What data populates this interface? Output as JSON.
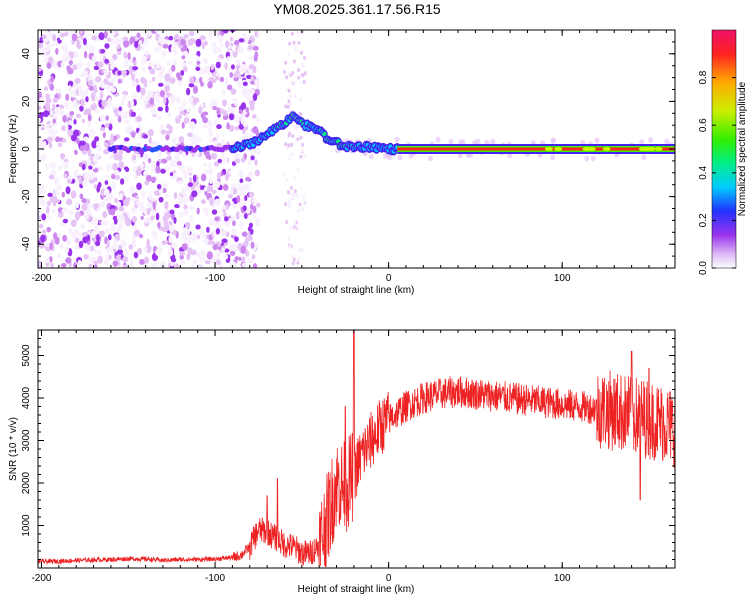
{
  "title": "YM08.2025.361.17.56.R15",
  "colors": {
    "trace": "#ee2222",
    "colormap": [
      "#f8f0fc",
      "#e6c4f6",
      "#cc88ee",
      "#9933ee",
      "#4422ee",
      "#2255ff",
      "#00ccff",
      "#00ee88",
      "#44ee00",
      "#ccee00",
      "#ffaa00",
      "#ff2222",
      "#ee1166"
    ]
  },
  "chart_data": [
    {
      "id": "spectrogram",
      "type": "heatmap",
      "xlabel": "Height of straight line (km)",
      "ylabel": "Frequency (Hz)",
      "xlim": [
        -202,
        165
      ],
      "ylim": [
        -50,
        50
      ],
      "xticks": [
        -200,
        -100,
        0,
        100
      ],
      "yticks": [
        -40,
        -20,
        0,
        20,
        40
      ],
      "colorbar": {
        "label": "Normalized spectral amplitude",
        "range": [
          0,
          1
        ],
        "ticks": [
          "0.0",
          "0.2",
          "0.4",
          "0.6",
          "0.8"
        ]
      },
      "ridge": [
        {
          "x": -160,
          "f": 0
        },
        {
          "x": -110,
          "f": 0
        },
        {
          "x": -90,
          "f": 0
        },
        {
          "x": -80,
          "f": 2
        },
        {
          "x": -70,
          "f": 6
        },
        {
          "x": -60,
          "f": 11
        },
        {
          "x": -54,
          "f": 14
        },
        {
          "x": -48,
          "f": 10
        },
        {
          "x": -40,
          "f": 8
        },
        {
          "x": -35,
          "f": 4
        },
        {
          "x": -25,
          "f": 1
        },
        {
          "x": -10,
          "f": 1
        },
        {
          "x": 0,
          "f": 0
        },
        {
          "x": 5,
          "f": 0
        },
        {
          "x": 165,
          "f": 0
        }
      ],
      "noise_extent": [
        -202,
        -85
      ]
    },
    {
      "id": "snr",
      "type": "line",
      "xlabel": "Height of straight line (km)",
      "ylabel": "SNR (10 * v/v)",
      "xlim": [
        -202,
        165
      ],
      "ylim": [
        0,
        5600
      ],
      "xticks": [
        -200,
        -100,
        0,
        100
      ],
      "yticks": [
        1000,
        2000,
        3000,
        4000,
        5000
      ],
      "series": [
        {
          "name": "SNR",
          "x": [
            -202,
            -190,
            -180,
            -170,
            -160,
            -150,
            -140,
            -130,
            -120,
            -110,
            -100,
            -90,
            -85,
            -80,
            -75,
            -70,
            -65,
            -60,
            -55,
            -50,
            -45,
            -40,
            -35,
            -30,
            -25,
            -20,
            -15,
            -10,
            -5,
            0,
            10,
            20,
            30,
            40,
            50,
            60,
            70,
            80,
            90,
            100,
            110,
            120,
            130,
            140,
            150,
            160,
            165
          ],
          "y": [
            150,
            160,
            180,
            190,
            200,
            220,
            210,
            180,
            200,
            200,
            210,
            250,
            300,
            500,
            900,
            850,
            700,
            550,
            500,
            350,
            350,
            550,
            1200,
            2000,
            1900,
            2200,
            2700,
            3000,
            3300,
            3500,
            3800,
            4000,
            4100,
            4150,
            4100,
            4050,
            4000,
            3950,
            3900,
            3850,
            3800,
            3750,
            3700,
            3600,
            3500,
            3400,
            3300
          ],
          "spikes": [
            {
              "x": -64,
              "y": 2100
            },
            {
              "x": -70,
              "y": 1700
            },
            {
              "x": -20,
              "y": 5700
            },
            {
              "x": -25,
              "y": 3800
            },
            {
              "x": 140,
              "y": 5100
            },
            {
              "x": 150,
              "y": 4700
            },
            {
              "x": 145,
              "y": 1600
            }
          ]
        }
      ]
    }
  ]
}
